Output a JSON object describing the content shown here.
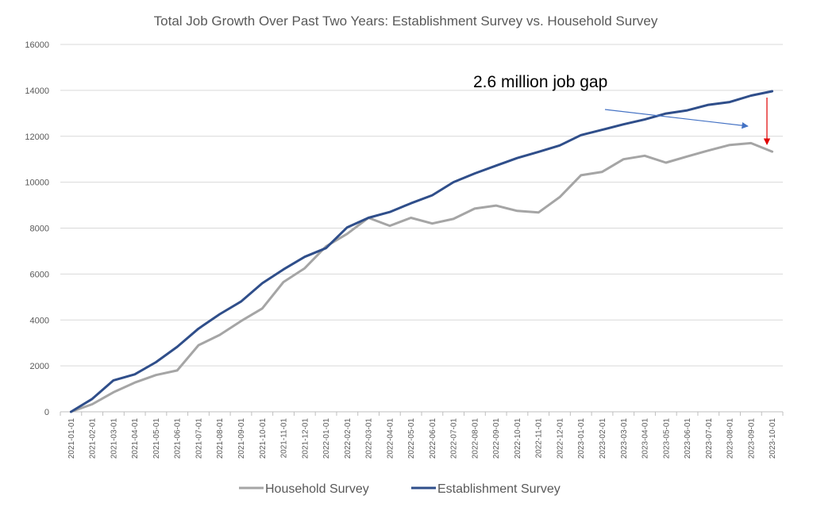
{
  "chart_data": {
    "type": "line",
    "title": "Total Job Growth Over Past Two Years: Establishment Survey vs. Household Survey",
    "xlabel": "",
    "ylabel": "",
    "ylim": [
      0,
      16000
    ],
    "y_ticks": [
      0,
      2000,
      4000,
      6000,
      8000,
      10000,
      12000,
      14000,
      16000
    ],
    "grid": "horizontal",
    "legend_position": "bottom",
    "categories": [
      "2021-01-01",
      "2021-02-01",
      "2021-03-01",
      "2021-04-01",
      "2021-05-01",
      "2021-06-01",
      "2021-07-01",
      "2021-08-01",
      "2021-09-01",
      "2021-10-01",
      "2021-11-01",
      "2021-12-01",
      "2022-01-01",
      "2022-02-01",
      "2022-03-01",
      "2022-04-01",
      "2022-05-01",
      "2022-06-01",
      "2022-07-01",
      "2022-08-01",
      "2022-09-01",
      "2022-10-01",
      "2022-11-01",
      "2022-12-01",
      "2023-01-01",
      "2023-02-01",
      "2023-03-01",
      "2023-04-01",
      "2023-05-01",
      "2023-06-01",
      "2023-07-01",
      "2023-08-01",
      "2023-09-01",
      "2023-10-01"
    ],
    "series": [
      {
        "name": "Household Survey",
        "color": "#a5a5a5",
        "values": [
          0,
          330,
          850,
          1270,
          1600,
          1800,
          2900,
          3350,
          3950,
          4500,
          5650,
          6250,
          7200,
          7750,
          8450,
          8100,
          8450,
          8200,
          8400,
          8850,
          8980,
          8750,
          8680,
          9350,
          10300,
          10450,
          11000,
          11150,
          10850,
          11120,
          11380,
          11620,
          11700,
          11330
        ]
      },
      {
        "name": "Establishment Survey",
        "color": "#2f4e8a",
        "values": [
          0,
          560,
          1370,
          1630,
          2160,
          2830,
          3620,
          4250,
          4800,
          5600,
          6200,
          6750,
          7130,
          8030,
          8450,
          8700,
          9080,
          9430,
          10000,
          10380,
          10720,
          11050,
          11320,
          11600,
          12050,
          12280,
          12520,
          12730,
          12990,
          13130,
          13370,
          13490,
          13770,
          13960
        ]
      }
    ],
    "annotations": [
      {
        "text": "2.6 million job gap"
      }
    ]
  }
}
